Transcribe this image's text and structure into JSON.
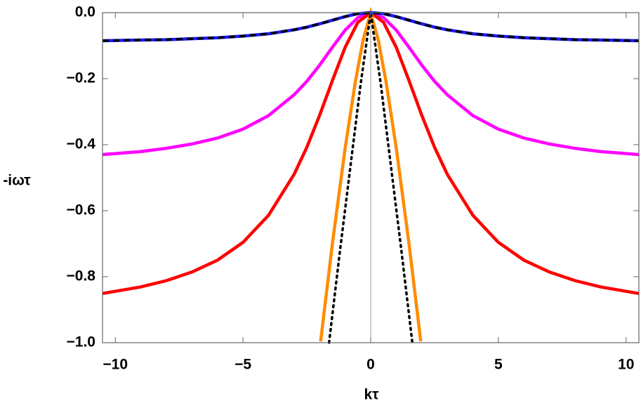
{
  "chart_data": {
    "type": "line",
    "x_label": "kτ",
    "y_label": "-iωτ",
    "xlim": [
      -10.5,
      10.5
    ],
    "ylim": [
      -1,
      0
    ],
    "xticks": [
      {
        "value": -10,
        "label": "−10"
      },
      {
        "value": -5,
        "label": "−5"
      },
      0,
      5,
      10
    ],
    "yticks": [
      {
        "value": 0,
        "label": "0.0"
      },
      {
        "value": -0.2,
        "label": "−0.2"
      },
      {
        "value": -0.4,
        "label": "−0.4"
      },
      {
        "value": -0.6,
        "label": "−0.6"
      },
      {
        "value": -0.8,
        "label": "−0.8"
      },
      {
        "value": -1,
        "label": "−1.0"
      }
    ],
    "series": [
      {
        "color": "#ff00ff",
        "dash": "solid",
        "x": [
          -10.5,
          -9,
          -8,
          -7,
          -6,
          -5,
          -4,
          -3,
          -2.5,
          -2,
          -1.5,
          -1,
          -0.5,
          0,
          0.5,
          1,
          1.5,
          2,
          2.5,
          3,
          4,
          5,
          6,
          7,
          8,
          9,
          10.5
        ],
        "values": [
          -0.43,
          -0.421,
          -0.411,
          -0.398,
          -0.38,
          -0.353,
          -0.312,
          -0.249,
          -0.208,
          -0.159,
          -0.105,
          -0.053,
          -0.015,
          0,
          -0.015,
          -0.053,
          -0.105,
          -0.159,
          -0.208,
          -0.249,
          -0.312,
          -0.353,
          -0.38,
          -0.398,
          -0.411,
          -0.421,
          -0.43
        ]
      },
      {
        "color": "#ff0000",
        "dash": "solid",
        "x": [
          -10.5,
          -9,
          -8,
          -7,
          -6,
          -5,
          -4,
          -3,
          -2.5,
          -2,
          -1.5,
          -1,
          -0.5,
          0,
          0.5,
          1,
          1.5,
          2,
          2.5,
          3,
          4,
          5,
          6,
          7,
          8,
          9,
          10.5
        ],
        "values": [
          -0.851,
          -0.831,
          -0.812,
          -0.786,
          -0.75,
          -0.696,
          -0.614,
          -0.49,
          -0.408,
          -0.311,
          -0.206,
          -0.105,
          -0.029,
          0,
          -0.029,
          -0.105,
          -0.206,
          -0.311,
          -0.408,
          -0.49,
          -0.614,
          -0.696,
          -0.75,
          -0.786,
          -0.812,
          -0.831,
          -0.851
        ]
      },
      {
        "color": "#ff8c00",
        "dash": "solid",
        "x": [
          -1.96,
          -1.5,
          -1,
          -0.6,
          -0.3,
          0,
          0.3,
          0.6,
          1,
          1.5,
          1.96
        ],
        "values": [
          -0.996,
          -0.7,
          -0.41,
          -0.209,
          -0.084,
          0,
          -0.084,
          -0.209,
          -0.41,
          -0.7,
          -0.996
        ]
      },
      {
        "color": "#000000",
        "dash": "dotted",
        "x": [
          -1.63,
          -1.2,
          -0.8,
          -0.4,
          0,
          0.4,
          0.8,
          1.2,
          1.63
        ],
        "values": [
          -1,
          -0.72,
          -0.47,
          -0.22,
          0,
          -0.22,
          -0.47,
          -0.72,
          -1
        ]
      },
      {
        "color": "#1a1aff",
        "dash": "solid",
        "x": [
          -10.5,
          -9,
          -8,
          -7,
          -6,
          -5,
          -4,
          -3,
          -2.5,
          -2,
          -1.5,
          -1,
          -0.5,
          0,
          0.5,
          1,
          1.5,
          2,
          2.5,
          3,
          4,
          5,
          6,
          7,
          8,
          9,
          10.5
        ],
        "values": [
          -0.085,
          -0.083,
          -0.082,
          -0.079,
          -0.076,
          -0.071,
          -0.064,
          -0.052,
          -0.044,
          -0.034,
          -0.023,
          -0.012,
          -0.003,
          0,
          -0.003,
          -0.012,
          -0.023,
          -0.034,
          -0.044,
          -0.052,
          -0.064,
          -0.071,
          -0.076,
          -0.079,
          -0.082,
          -0.083,
          -0.085
        ]
      },
      {
        "color": "#000000",
        "dash": "dashed",
        "x": [
          -10.5,
          -9,
          -8,
          -7,
          -6,
          -5,
          -4,
          -3,
          -2.5,
          -2,
          -1.5,
          -1,
          -0.5,
          0,
          0.5,
          1,
          1.5,
          2,
          2.5,
          3,
          4,
          5,
          6,
          7,
          8,
          9,
          10.5
        ],
        "values": [
          -0.085,
          -0.083,
          -0.082,
          -0.079,
          -0.076,
          -0.071,
          -0.064,
          -0.052,
          -0.044,
          -0.034,
          -0.023,
          -0.012,
          -0.003,
          0,
          -0.003,
          -0.012,
          -0.023,
          -0.034,
          -0.044,
          -0.052,
          -0.064,
          -0.071,
          -0.076,
          -0.079,
          -0.082,
          -0.083,
          -0.085
        ]
      }
    ]
  }
}
